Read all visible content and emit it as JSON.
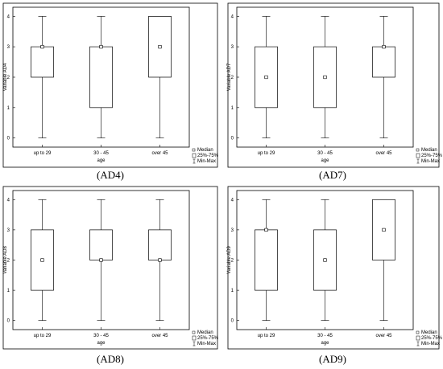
{
  "legend": {
    "median": "Median",
    "box": "25%-75%",
    "range": "Min-Max"
  },
  "chart_data": [
    {
      "type": "box",
      "caption": "(AD4)",
      "xlabel": "age",
      "ylabel": "Variable AD4",
      "categories": [
        "up to 29",
        "30 - 45",
        "over 45"
      ],
      "ylim": [
        -0.3,
        4.3
      ],
      "yticks": [
        0,
        1,
        2,
        3,
        4
      ],
      "boxes": [
        {
          "min": 0,
          "q1": 2,
          "median": 3,
          "q3": 3,
          "max": 4
        },
        {
          "min": 0,
          "q1": 1,
          "median": 3,
          "q3": 3,
          "max": 4
        },
        {
          "min": 0,
          "q1": 2,
          "median": 3,
          "q3": 4,
          "max": 4
        }
      ]
    },
    {
      "type": "box",
      "caption": "(AD7)",
      "xlabel": "age",
      "ylabel": "Variable AD7",
      "categories": [
        "up to 29",
        "30 - 45",
        "over 45"
      ],
      "ylim": [
        -0.3,
        4.3
      ],
      "yticks": [
        0,
        1,
        2,
        3,
        4
      ],
      "boxes": [
        {
          "min": 0,
          "q1": 1,
          "median": 2,
          "q3": 3,
          "max": 4
        },
        {
          "min": 0,
          "q1": 1,
          "median": 2,
          "q3": 3,
          "max": 4
        },
        {
          "min": 0,
          "q1": 2,
          "median": 3,
          "q3": 3,
          "max": 4
        }
      ]
    },
    {
      "type": "box",
      "caption": "(AD8)",
      "xlabel": "age",
      "ylabel": "Variable AD8",
      "categories": [
        "up to 29",
        "30 - 45",
        "over 45"
      ],
      "ylim": [
        -0.3,
        4.3
      ],
      "yticks": [
        0,
        1,
        2,
        3,
        4
      ],
      "boxes": [
        {
          "min": 0,
          "q1": 1,
          "median": 2,
          "q3": 3,
          "max": 4
        },
        {
          "min": 0,
          "q1": 2,
          "median": 2,
          "q3": 3,
          "max": 4
        },
        {
          "min": 0,
          "q1": 2,
          "median": 2,
          "q3": 3,
          "max": 4
        }
      ]
    },
    {
      "type": "box",
      "caption": "(AD9)",
      "xlabel": "age",
      "ylabel": "Variable AD9",
      "categories": [
        "up to 29",
        "30 - 45",
        "over 45"
      ],
      "ylim": [
        -0.3,
        4.3
      ],
      "yticks": [
        0,
        1,
        2,
        3,
        4
      ],
      "boxes": [
        {
          "min": 0,
          "q1": 1,
          "median": 3,
          "q3": 3,
          "max": 4
        },
        {
          "min": 0,
          "q1": 1,
          "median": 2,
          "q3": 3,
          "max": 4
        },
        {
          "min": 0,
          "q1": 2,
          "median": 3,
          "q3": 4,
          "max": 4
        }
      ]
    }
  ]
}
